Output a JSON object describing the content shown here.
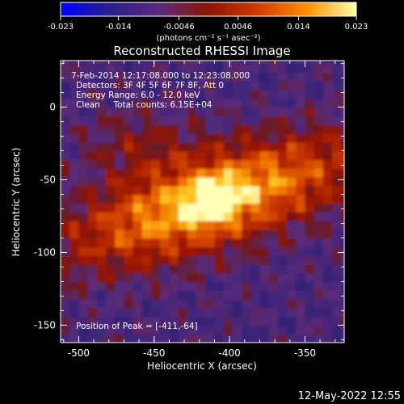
{
  "chart_data": {
    "type": "heatmap",
    "title": "Reconstructed RHESSI Image",
    "xlabel": "Heliocentric X (arcsec)",
    "ylabel": "Heliocentric Y (arcsec)",
    "xlim": [
      -512,
      -324
    ],
    "ylim": [
      -162,
      32
    ],
    "x_ticks": [
      -500,
      -450,
      -400,
      -350
    ],
    "y_ticks": [
      0,
      -50,
      -100,
      -150
    ],
    "colorbar": {
      "range": [
        -0.023,
        0.023
      ],
      "ticks": [
        "-0.023",
        "-0.014",
        "-0.0046",
        "0.0046",
        "0.014",
        "0.023"
      ],
      "units_label": "(photons cm⁻² s⁻¹ asec⁻²)",
      "colormap_stops": [
        "#0000ff",
        "#2a1f8a",
        "#5a2b7a",
        "#8c1400",
        "#d23a00",
        "#ff9000",
        "#ffffaa"
      ]
    },
    "annotations": [
      "7-Feb-2014 12:17:08.000 to 12:23:08.000",
      "Detectors: 3F 4F 5F 6F 7F 8F, Att 0",
      "Energy Range: 6.0 - 12.0 keV",
      "Clean     Total counts: 6.15E+04"
    ],
    "peak_label": "Position of Peak = [-411,-64]",
    "peak": {
      "x": -411,
      "y": -64,
      "value": 0.023
    }
  },
  "footer": {
    "timestamp": "12-May-2022 12:55"
  }
}
